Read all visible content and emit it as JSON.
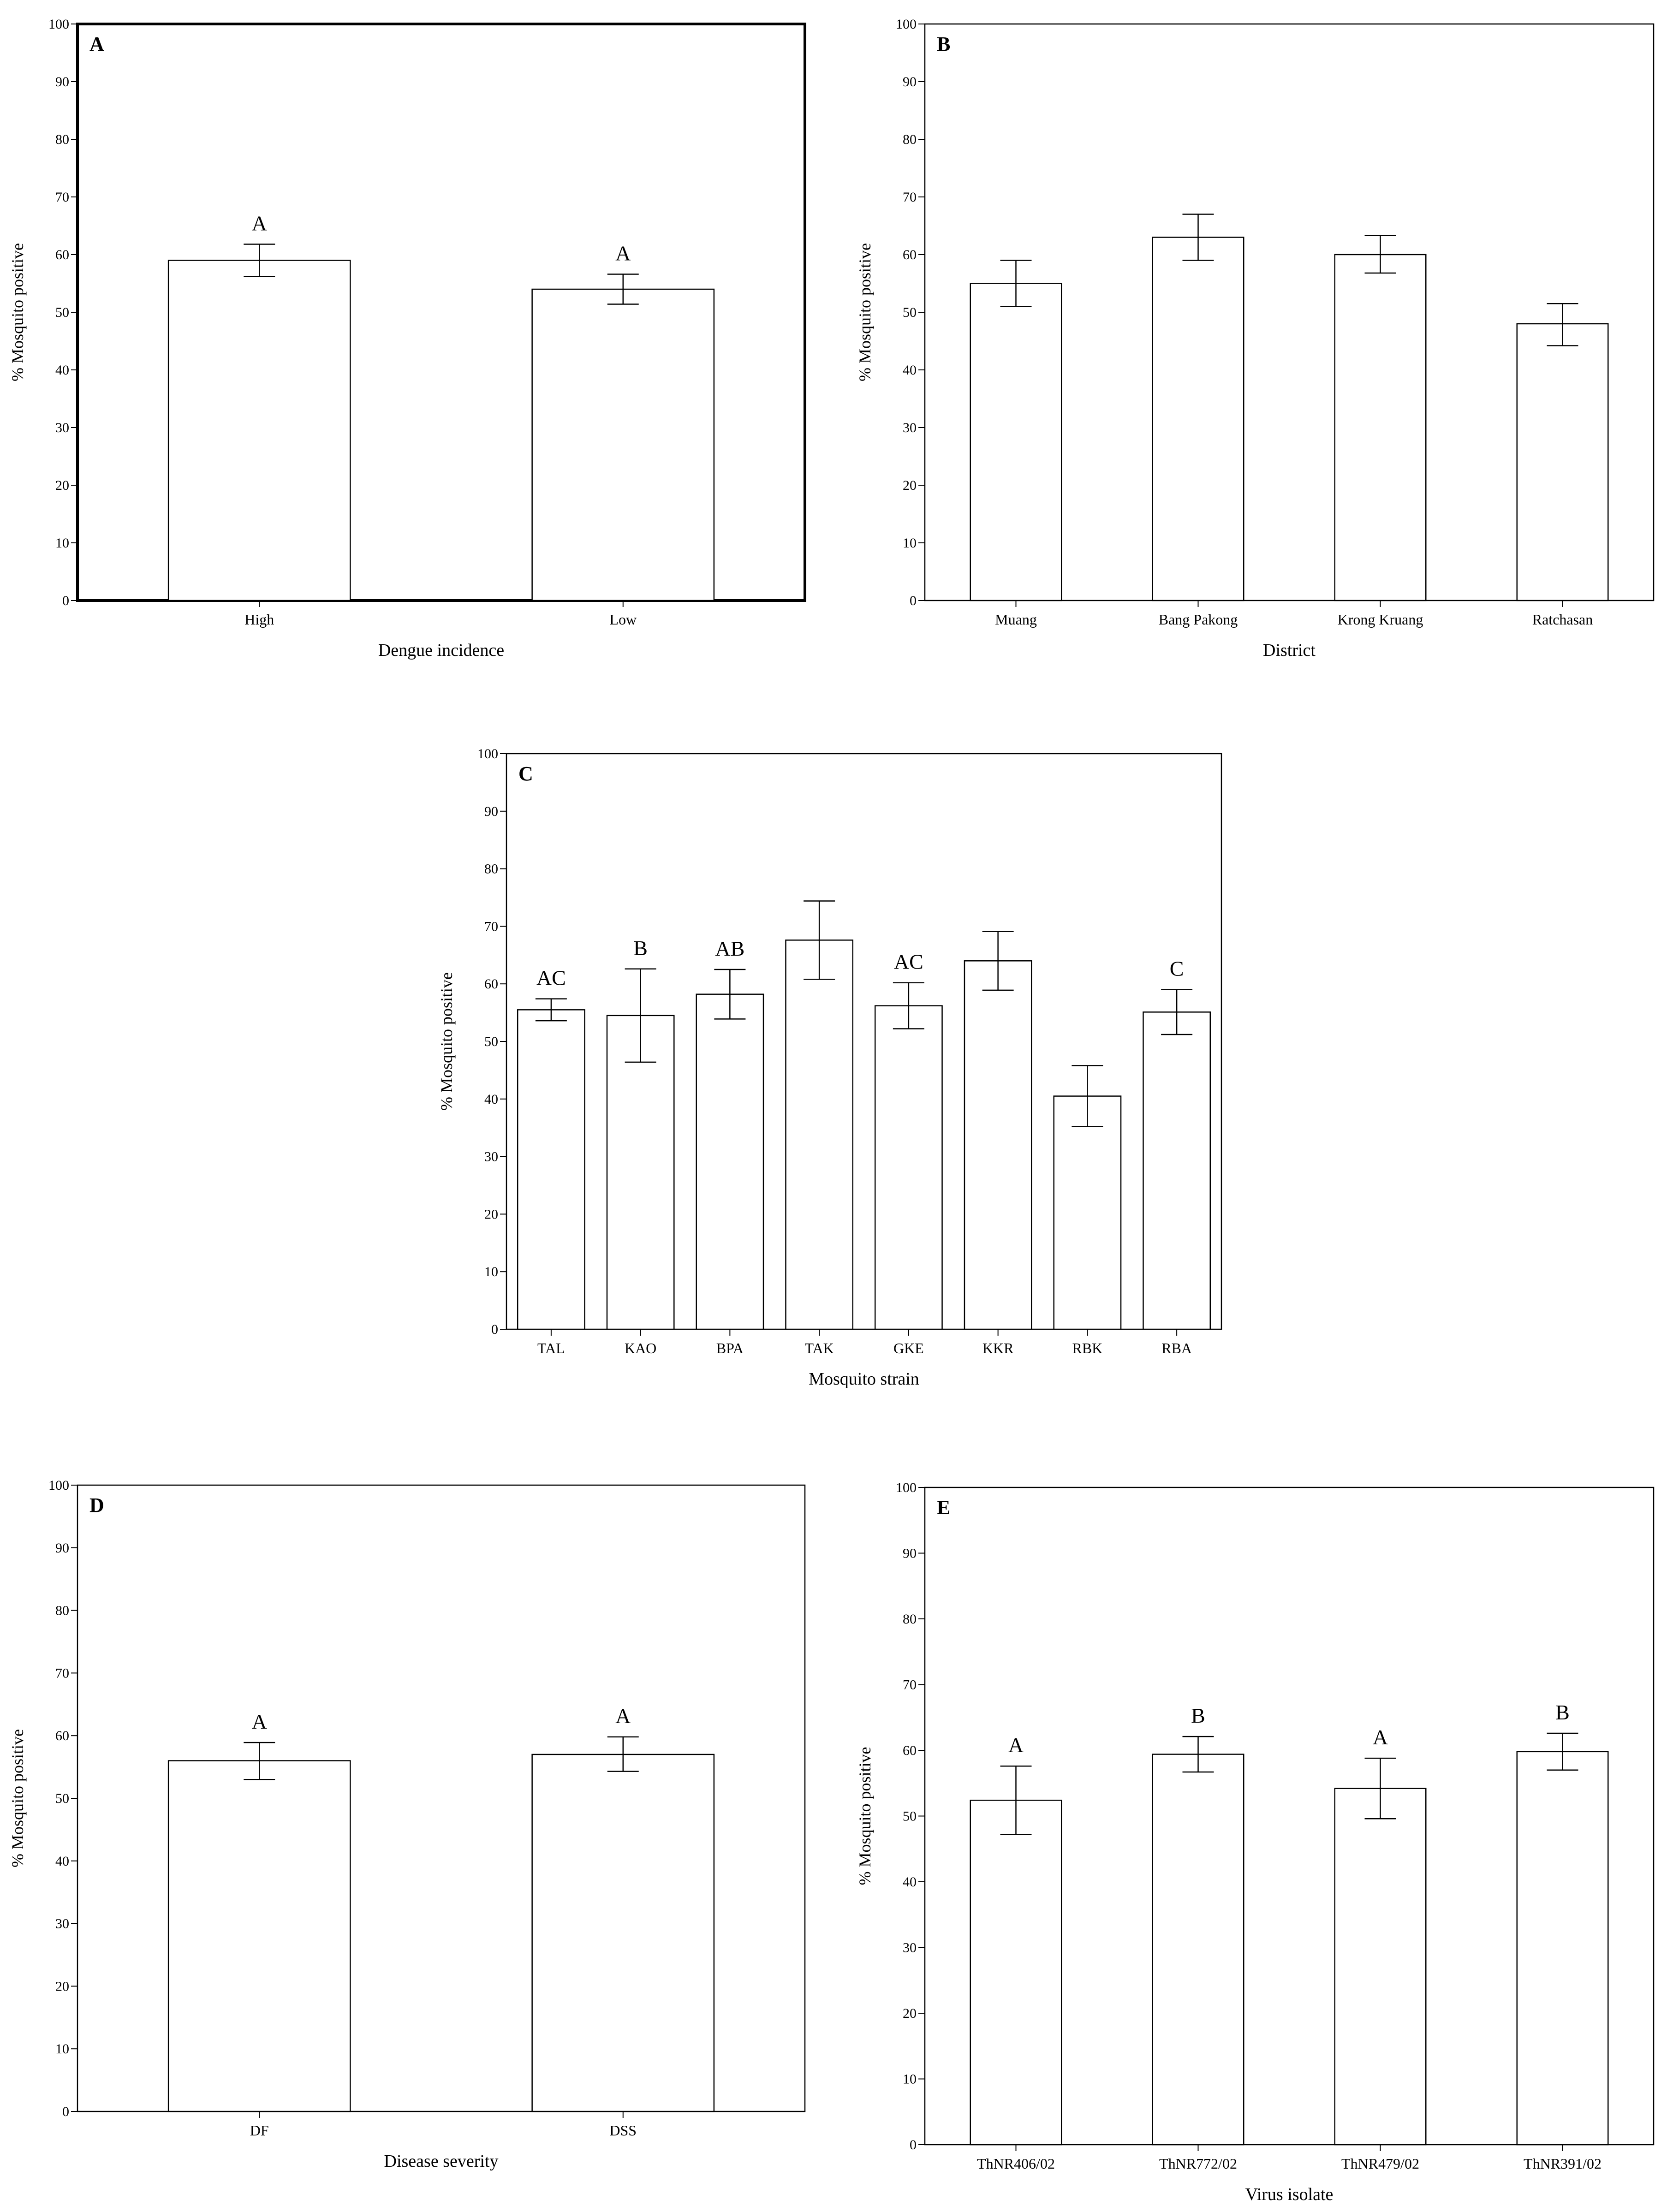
{
  "chart_data": [
    {
      "type": "bar",
      "panel": "A",
      "categories": [
        "High",
        "Low"
      ],
      "values": [
        59,
        54
      ],
      "error_low": [
        56.2,
        51.4
      ],
      "error_high": [
        61.8,
        56.6
      ],
      "significance_labels": [
        "A",
        "A"
      ],
      "title": "",
      "xlabel": "Dengue incidence",
      "ylabel": "% Mosquito positive",
      "ylim": [
        0,
        100
      ],
      "yticks": [
        0,
        10,
        20,
        30,
        40,
        50,
        60,
        70,
        80,
        90,
        100
      ]
    },
    {
      "type": "bar",
      "panel": "B",
      "categories": [
        "Muang",
        "Bang Pakong",
        "Krong Kruang",
        "Ratchasan"
      ],
      "values": [
        55,
        63,
        60,
        48
      ],
      "error_low": [
        51,
        59,
        56.8,
        44.2
      ],
      "error_high": [
        59,
        67,
        63.3,
        51.5
      ],
      "significance_labels": [
        "",
        "",
        "",
        ""
      ],
      "title": "",
      "xlabel": "District",
      "ylabel": "% Mosquito positive",
      "ylim": [
        0,
        100
      ],
      "yticks": [
        0,
        10,
        20,
        30,
        40,
        50,
        60,
        70,
        80,
        90,
        100
      ]
    },
    {
      "type": "bar",
      "panel": "C",
      "categories": [
        "TAL",
        "KAO",
        "BPA",
        "TAK",
        "GKE",
        "KKR",
        "RBK",
        "RBA"
      ],
      "values": [
        55.5,
        54.5,
        58.2,
        67.6,
        56.2,
        64,
        40.5,
        55.1
      ],
      "error_low": [
        53.6,
        46.4,
        53.9,
        60.8,
        52.2,
        58.9,
        35.2,
        51.2
      ],
      "error_high": [
        57.4,
        62.6,
        62.5,
        74.4,
        60.2,
        69.1,
        45.8,
        59
      ],
      "significance_labels": [
        "AC",
        "B",
        "AB",
        "",
        "AC",
        "",
        "",
        "C"
      ],
      "title": "",
      "xlabel": "Mosquito strain",
      "ylabel": "% Mosquito positive",
      "ylim": [
        0,
        100
      ],
      "yticks": [
        0,
        10,
        20,
        30,
        40,
        50,
        60,
        70,
        80,
        90,
        100
      ]
    },
    {
      "type": "bar",
      "panel": "D",
      "categories": [
        "DF",
        "DSS"
      ],
      "values": [
        56,
        57
      ],
      "error_low": [
        53,
        54.3
      ],
      "error_high": [
        58.9,
        59.8
      ],
      "significance_labels": [
        "A",
        "A"
      ],
      "title": "",
      "xlabel": "Disease severity",
      "ylabel": "% Mosquito positive",
      "ylim": [
        0,
        100
      ],
      "yticks": [
        0,
        10,
        20,
        30,
        40,
        50,
        60,
        70,
        80,
        90,
        100
      ]
    },
    {
      "type": "bar",
      "panel": "E",
      "categories": [
        "ThNR406/02",
        "ThNR772/02",
        "ThNR479/02",
        "ThNR391/02"
      ],
      "values": [
        52.4,
        59.4,
        54.2,
        59.8
      ],
      "error_low": [
        47.2,
        56.7,
        49.6,
        57
      ],
      "error_high": [
        57.6,
        62.1,
        58.8,
        62.6
      ],
      "significance_labels": [
        "A",
        "B",
        "A",
        "B"
      ],
      "title": "",
      "xlabel": "Virus isolate",
      "ylabel": "% Mosquito positive",
      "ylim": [
        0,
        100
      ],
      "yticks": [
        0,
        10,
        20,
        30,
        40,
        50,
        60,
        70,
        80,
        90,
        100
      ]
    }
  ]
}
